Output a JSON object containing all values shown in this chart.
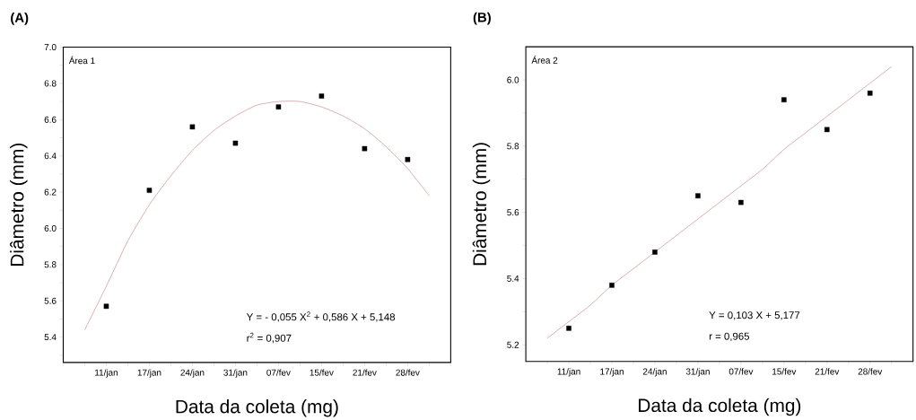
{
  "chart_data": [
    {
      "type": "scatter",
      "title": "(A)",
      "xlabel": "Data da coleta (mg)",
      "ylabel": "Diâmetro (mm)",
      "annotations": [
        "Área 1",
        "Y =  - 0,055 X$^{2}$ + 0,586 X + 5,148",
        "r$^{2}$ = 0,907"
      ],
      "categories": [
        null,
        "11/jan",
        null,
        "17/jan",
        null,
        "24/jan",
        null,
        "31/jan",
        null,
        "07/fev",
        null,
        "15/fev",
        null,
        "21/fev",
        null,
        "28/fev",
        null
      ],
      "ylim": [
        5.26,
        7.0
      ],
      "yticks": [
        {
          "value": 5.3,
          "label": null
        },
        {
          "value": 5.4,
          "label": "5.4"
        },
        {
          "value": 5.5,
          "label": null
        },
        {
          "value": 5.6,
          "label": "5.6"
        },
        {
          "value": 5.7,
          "label": null
        },
        {
          "value": 5.8,
          "label": "5.8"
        },
        {
          "value": 5.9,
          "label": null
        },
        {
          "value": 6.0,
          "label": "6.0"
        },
        {
          "value": 6.1,
          "label": null
        },
        {
          "value": 6.2,
          "label": "6.2"
        },
        {
          "value": 6.3,
          "label": null
        },
        {
          "value": 6.4,
          "label": "6.4"
        },
        {
          "value": 6.5,
          "label": null
        },
        {
          "value": 6.6,
          "label": "6.6"
        },
        {
          "value": 6.7,
          "label": null
        },
        {
          "value": 6.8,
          "label": "6.8"
        },
        {
          "value": 6.9,
          "label": null
        },
        {
          "value": 7.0,
          "label": "7.0"
        }
      ],
      "series": [
        {
          "marker": "square",
          "color": "#000000",
          "values": [
            null,
            5.57,
            null,
            6.21,
            null,
            6.56,
            null,
            6.47,
            null,
            6.67,
            null,
            6.73,
            null,
            6.44,
            null,
            6.38,
            null
          ]
        },
        {
          "type": "line",
          "color": "#c98c8c",
          "values": [
            5.44,
            5.68,
            5.93,
            6.13,
            6.29,
            6.43,
            6.54,
            6.62,
            6.68,
            6.7,
            6.7,
            6.67,
            6.62,
            6.55,
            6.45,
            6.33,
            6.18
          ]
        }
      ]
    },
    {
      "type": "scatter",
      "title": "(B)",
      "xlabel": "Data da coleta (mg)",
      "ylabel": "Diâmetro (mm)",
      "annotations": [
        "Área 2",
        "Y = 0,103 X + 5,177",
        "r = 0,965"
      ],
      "categories": [
        null,
        "11/jan",
        null,
        "17/jan",
        null,
        "24/jan",
        null,
        "31/jan",
        null,
        "07/fev",
        null,
        "15/fev",
        null,
        "21/fev",
        null,
        "28/fev",
        null
      ],
      "ylim": [
        5.15,
        6.1
      ],
      "yticks": [
        {
          "value": 5.2,
          "label": "5.2"
        },
        {
          "value": 5.3,
          "label": null
        },
        {
          "value": 5.4,
          "label": "5.4"
        },
        {
          "value": 5.5,
          "label": null
        },
        {
          "value": 5.6,
          "label": "5.6"
        },
        {
          "value": 5.7,
          "label": null
        },
        {
          "value": 5.8,
          "label": "5.8"
        },
        {
          "value": 5.9,
          "label": null
        },
        {
          "value": 6.0,
          "label": "6.0"
        }
      ],
      "series": [
        {
          "marker": "square",
          "color": "#000000",
          "values": [
            null,
            5.25,
            null,
            5.38,
            null,
            5.48,
            null,
            5.65,
            null,
            5.63,
            null,
            5.94,
            null,
            5.85,
            null,
            5.96,
            null
          ]
        },
        {
          "type": "line",
          "color": "#c98c8c",
          "values": [
            5.22,
            5.27,
            5.32,
            5.38,
            5.43,
            5.48,
            5.53,
            5.58,
            5.63,
            5.68,
            5.73,
            5.79,
            5.84,
            5.89,
            5.94,
            5.99,
            6.04
          ]
        }
      ]
    }
  ]
}
